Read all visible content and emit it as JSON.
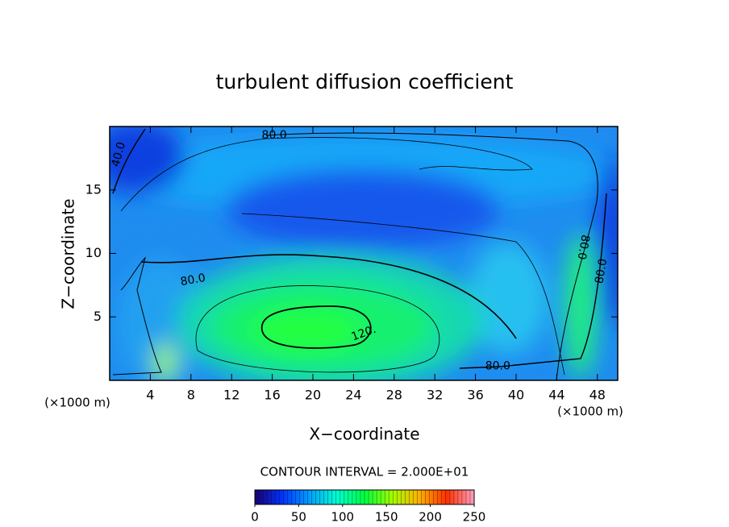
{
  "chart_data": {
    "type": "contour",
    "title": "turbulent diffusion coefficient",
    "x_label": "X−coordinate",
    "y_label": "Z−coordinate",
    "x_unit": "(×1000 m)",
    "y_unit": "(×1000 m)",
    "xlim": [
      0,
      50
    ],
    "ylim": [
      0,
      20
    ],
    "xticks": [
      4,
      8,
      12,
      16,
      20,
      24,
      28,
      32,
      36,
      40,
      44,
      48
    ],
    "yticks": [
      5,
      10,
      15
    ],
    "contour_interval_text": "CONTOUR INTERVAL = 2.000E+01",
    "contour_labels": [
      {
        "text": "80.0",
        "x": 16.2,
        "y": 19.3,
        "angle": 0
      },
      {
        "text": "40.0",
        "x": 0.9,
        "y": 17.8,
        "angle": -75
      },
      {
        "text": "80.0",
        "x": 8.2,
        "y": 7.9,
        "angle": -10
      },
      {
        "text": "120.",
        "x": 25.0,
        "y": 3.7,
        "angle": -20
      },
      {
        "text": "80.0",
        "x": 38.2,
        "y": 1.1,
        "angle": 0
      },
      {
        "text": "80.0",
        "x": 46.6,
        "y": 10.5,
        "angle": 100
      },
      {
        "text": "80.0",
        "x": 48.4,
        "y": 8.6,
        "angle": -80
      }
    ],
    "colorbar": {
      "lim": [
        0,
        250
      ],
      "ticks": [
        0,
        50,
        100,
        150,
        200,
        250
      ],
      "colorscale": [
        "#1a0070",
        "#0033ff",
        "#00a0ff",
        "#00ffd0",
        "#00ff40",
        "#a0ff00",
        "#ffb000",
        "#ff3000",
        "#ffa0c0"
      ]
    }
  }
}
